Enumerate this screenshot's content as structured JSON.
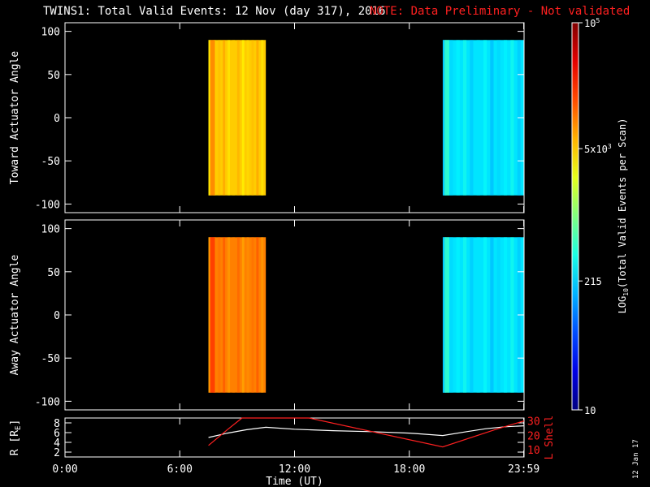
{
  "title": "TWINS1: Total Valid Events: 12 Nov (day 317), 2016",
  "note": "NOTE: Data Preliminary - Not validated",
  "stamp": "12 Jan 17",
  "colors": {
    "background": "#000000",
    "axes": "#ffffff",
    "note": "#ff2020",
    "lshell": "#ff2020",
    "radius": "#ffffff"
  },
  "chart_data": [
    {
      "type": "heatmap",
      "ylabel": "Toward Actuator Angle",
      "ylim": [
        -110,
        110
      ],
      "yticks": [
        100,
        50,
        0,
        -50,
        -100
      ],
      "xlim": [
        0,
        24
      ],
      "blocks": [
        {
          "x": [
            7.5,
            10.5
          ],
          "y": [
            -90,
            90
          ],
          "log10_events": 3.7
        },
        {
          "x": [
            19.75,
            24.0
          ],
          "y": [
            -90,
            90
          ],
          "log10_events": 2.4
        }
      ]
    },
    {
      "type": "heatmap",
      "ylabel": "Away Actuator Angle",
      "ylim": [
        -110,
        110
      ],
      "yticks": [
        100,
        50,
        0,
        -50,
        -100
      ],
      "xlim": [
        0,
        24
      ],
      "blocks": [
        {
          "x": [
            7.5,
            10.5
          ],
          "y": [
            -90,
            90
          ],
          "log10_events": 4.0
        },
        {
          "x": [
            19.75,
            24.0
          ],
          "y": [
            -90,
            90
          ],
          "log10_events": 2.4
        }
      ]
    },
    {
      "type": "line",
      "ylabel": "R [R",
      "ylabel_sub": "E",
      "ylabel_end": "]",
      "ylim": [
        1,
        9
      ],
      "yticks": [
        8,
        6,
        4,
        2
      ],
      "y2label": "L Shell",
      "y2lim": [
        5,
        32
      ],
      "y2ticks": [
        30,
        20,
        10
      ],
      "xlabel": "Time (UT)",
      "xlim": [
        0,
        24
      ],
      "xticks": [
        0,
        6,
        12,
        18,
        23.983
      ],
      "xtick_labels": [
        "0:00",
        "6:00",
        "12:00",
        "18:00",
        "23:59"
      ],
      "series": [
        {
          "color": "#ffffff",
          "axis": "left",
          "x": [
            7.5,
            8.5,
            9.5,
            10.5,
            12,
            14,
            16,
            18,
            19.75,
            21,
            22,
            23,
            24
          ],
          "y": [
            5.0,
            5.9,
            6.6,
            7.1,
            6.7,
            6.4,
            6.2,
            5.9,
            5.4,
            6.2,
            6.8,
            7.2,
            7.4
          ]
        },
        {
          "color": "#ff2020",
          "axis": "right",
          "x": [
            7.5,
            8.5,
            9.25,
            12.75,
            19.75,
            22.5,
            24.0
          ],
          "y": [
            13,
            24,
            32,
            32,
            12,
            24,
            30
          ]
        }
      ]
    }
  ],
  "colorbar": {
    "label_pre": "LOG",
    "label_sub": "10",
    "label_post": "(Total Valid Events per Scan)",
    "range": [
      1,
      5
    ],
    "ticks": [
      {
        "value": 5.0,
        "label": "10",
        "sup": "5"
      },
      {
        "value": 3.699,
        "label": "5x10",
        "sup": "3"
      },
      {
        "value": 2.332,
        "label": "215",
        "sup": ""
      },
      {
        "value": 1.0,
        "label": "10",
        "sup": ""
      }
    ]
  }
}
